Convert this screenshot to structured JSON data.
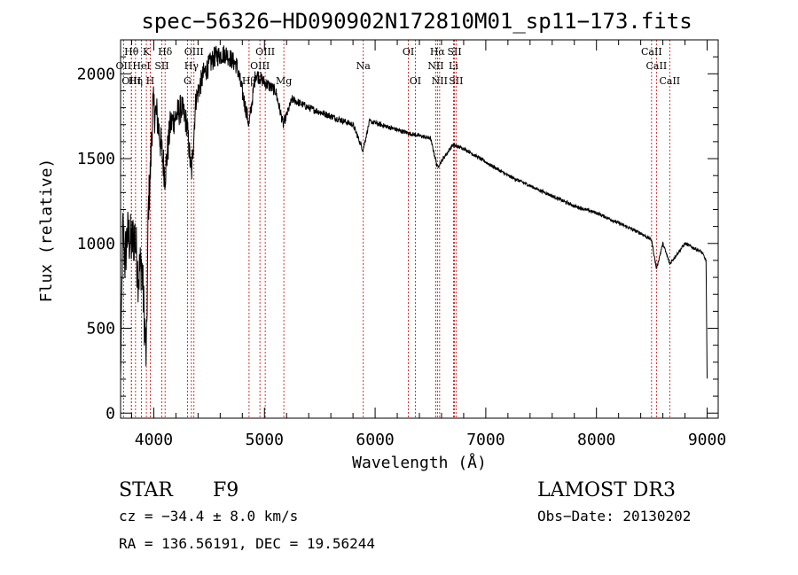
{
  "chart_data": {
    "type": "line",
    "title": "spec−56326−HD090902N172810M01_sp11−173.fits",
    "xlabel": "Wavelength (Å)",
    "ylabel": "Flux (relative)",
    "xlim": [
      3700,
      9100
    ],
    "ylim": [
      -30,
      2200
    ],
    "xticks": [
      4000,
      5000,
      6000,
      7000,
      8000,
      9000
    ],
    "yticks": [
      0,
      500,
      1000,
      1500,
      2000
    ],
    "spectrum_anchors": {
      "x": [
        3700,
        3720,
        3740,
        3760,
        3800,
        3830,
        3860,
        3890,
        3933,
        3950,
        3968,
        3990,
        4030,
        4101,
        4150,
        4200,
        4250,
        4300,
        4340,
        4380,
        4450,
        4550,
        4650,
        4750,
        4861,
        4920,
        5000,
        5100,
        5170,
        5250,
        5400,
        5600,
        5800,
        5890,
        5950,
        6100,
        6300,
        6500,
        6563,
        6700,
        6800,
        7000,
        7200,
        7400,
        7600,
        7800,
        8000,
        8200,
        8400,
        8498,
        8542,
        8600,
        8662,
        8800,
        8950,
        8990,
        9000
      ],
      "y": [
        200,
        1100,
        900,
        1050,
        1000,
        1050,
        800,
        900,
        300,
        1200,
        1400,
        1800,
        1750,
        1400,
        1700,
        1750,
        1800,
        1700,
        1400,
        1850,
        2000,
        2100,
        2120,
        2050,
        1700,
        2000,
        1950,
        1900,
        1700,
        1850,
        1800,
        1750,
        1700,
        1550,
        1720,
        1690,
        1650,
        1620,
        1450,
        1580,
        1560,
        1480,
        1400,
        1340,
        1280,
        1220,
        1180,
        1120,
        1060,
        1020,
        850,
        1000,
        880,
        1000,
        950,
        900,
        200
      ],
      "noise_amplitude": [
        40,
        160,
        170,
        170,
        170,
        170,
        170,
        170,
        150,
        140,
        140,
        140,
        120,
        110,
        100,
        90,
        90,
        80,
        80,
        75,
        70,
        65,
        60,
        55,
        50,
        45,
        40,
        35,
        30,
        25,
        22,
        20,
        18,
        16,
        15,
        14,
        13,
        12,
        12,
        11,
        10,
        10,
        10,
        10,
        10,
        10,
        10,
        10,
        10,
        10,
        10,
        10,
        10,
        10,
        10,
        10,
        10
      ]
    },
    "lines": [
      {
        "name": "OII",
        "wavelength": 3727,
        "row": 2
      },
      {
        "name": "Hθ",
        "wavelength": 3798,
        "row": 1
      },
      {
        "name": "OIII",
        "wavelength": 3798,
        "row": 3
      },
      {
        "name": "Hη",
        "wavelength": 3835,
        "row": 3
      },
      {
        "name": "HeI",
        "wavelength": 3889,
        "row": 2
      },
      {
        "name": "K",
        "wavelength": 3933,
        "row": 1
      },
      {
        "name": "H",
        "wavelength": 3968,
        "row": 3
      },
      {
        "name": "SII",
        "wavelength": 4072,
        "row": 2
      },
      {
        "name": "Hδ",
        "wavelength": 4102,
        "row": 1
      },
      {
        "name": "OIII",
        "wavelength": 4363,
        "row": 1
      },
      {
        "name": "Hγ",
        "wavelength": 4340,
        "row": 2
      },
      {
        "name": "G",
        "wavelength": 4304,
        "row": 3
      },
      {
        "name": "OIII",
        "wavelength": 4959,
        "row": 2
      },
      {
        "name": "OIII",
        "wavelength": 5007,
        "row": 1
      },
      {
        "name": "Hβ",
        "wavelength": 4861,
        "row": 3
      },
      {
        "name": "Mg",
        "wavelength": 5175,
        "row": 3
      },
      {
        "name": "Na",
        "wavelength": 5893,
        "row": 2
      },
      {
        "name": "OI",
        "wavelength": 6300,
        "row": 1
      },
      {
        "name": "OI",
        "wavelength": 6363,
        "row": 3
      },
      {
        "name": "NII",
        "wavelength": 6548,
        "row": 2
      },
      {
        "name": "Hα",
        "wavelength": 6563,
        "row": 1
      },
      {
        "name": "NII",
        "wavelength": 6583,
        "row": 3
      },
      {
        "name": "SII",
        "wavelength": 6717,
        "row": 1
      },
      {
        "name": "Li",
        "wavelength": 6708,
        "row": 2
      },
      {
        "name": "SII",
        "wavelength": 6731,
        "row": 3
      },
      {
        "name": "CaII",
        "wavelength": 8498,
        "row": 1
      },
      {
        "name": "CaII",
        "wavelength": 8542,
        "row": 2
      },
      {
        "name": "CaII",
        "wavelength": 8662,
        "row": 3
      }
    ]
  },
  "info": {
    "class_label": "STAR",
    "subclass": "F9",
    "cz_text": "cz = −34.4 ± 8.0 km/s",
    "radec_text": "RA = 136.56191, DEC =  19.56244",
    "survey": "LAMOST DR3",
    "obs_date": "Obs−Date: 20130202"
  },
  "colors": {
    "axis": "#000000",
    "spectrum": "#000000",
    "line_marker": "#cc0000"
  }
}
